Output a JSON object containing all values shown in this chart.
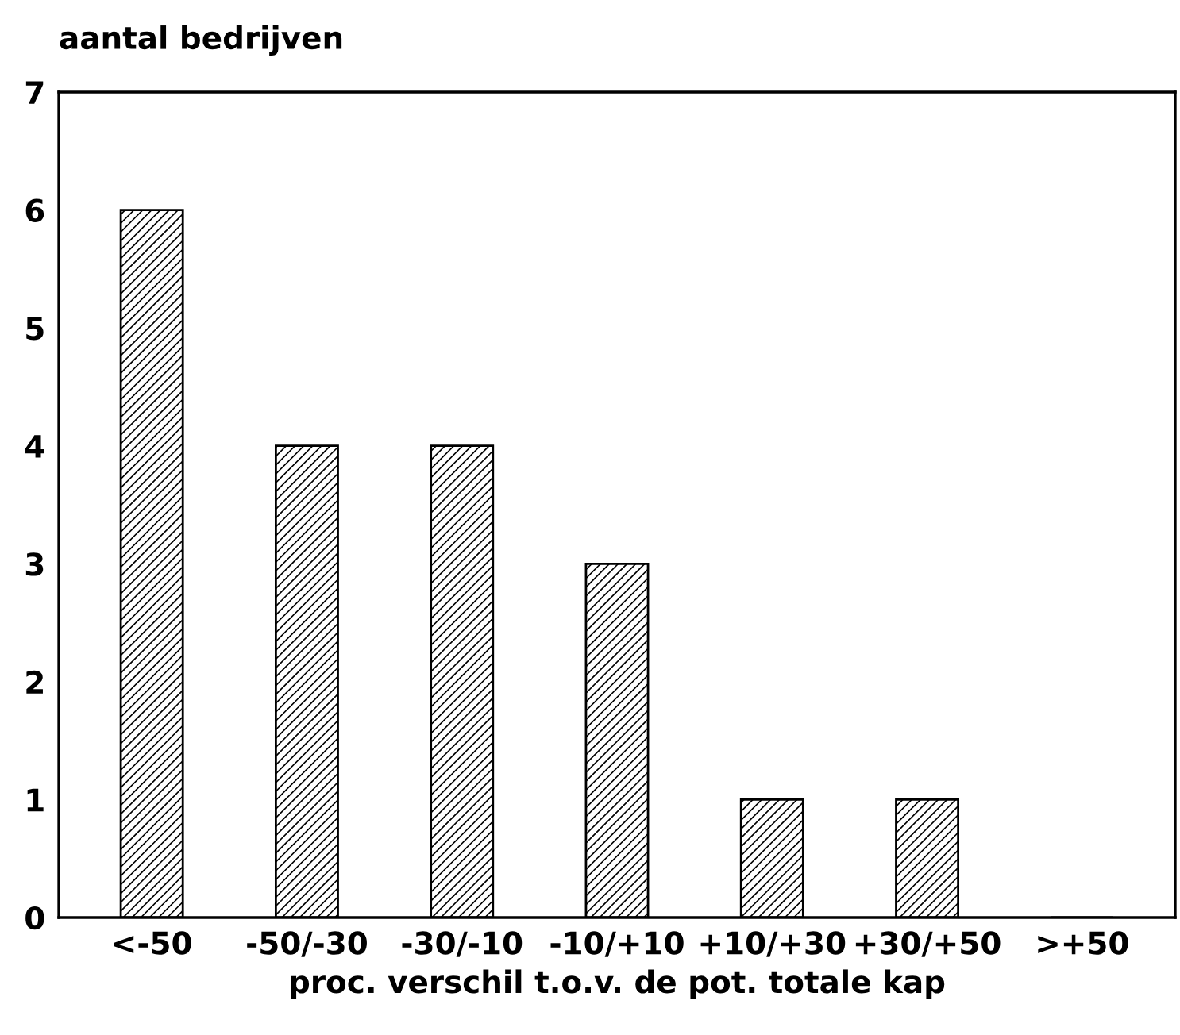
{
  "chart_data": {
    "type": "bar",
    "ylabel": "aantal bedrijven",
    "xlabel": "proc. verschil t.o.v. de pot. totale kap",
    "categories": [
      "<-50",
      "-50/-30",
      "-30/-10",
      "-10/+10",
      "+10/+30",
      "+30/+50",
      ">+50"
    ],
    "values": [
      6,
      4,
      4,
      3,
      1,
      1,
      0
    ],
    "color": "#000000",
    "ylim": [
      0,
      7
    ],
    "yticks": [
      0,
      1,
      2,
      3,
      4,
      5,
      6,
      7
    ],
    "grid": false
  }
}
